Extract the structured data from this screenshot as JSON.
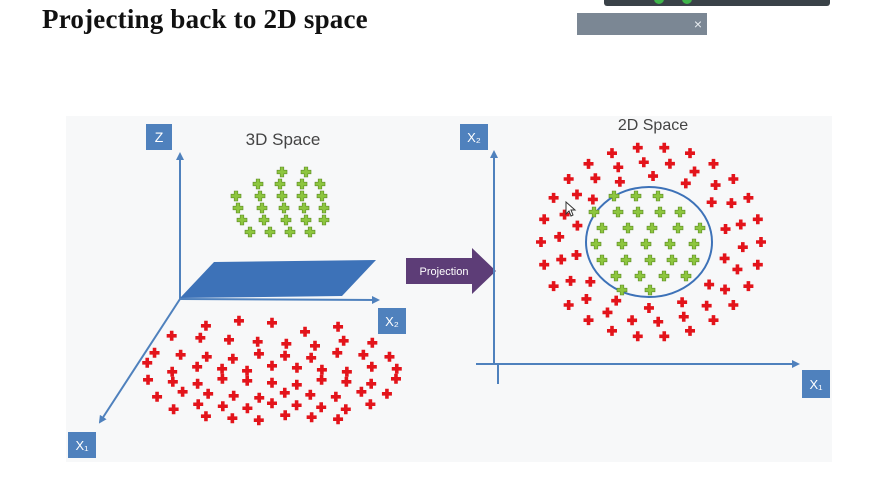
{
  "page": {
    "title": "Projecting back to 2D space"
  },
  "overlay": {
    "close_icon": "×",
    "icon_name": "close-icon"
  },
  "diagram": {
    "left_panel": {
      "title": "3D Space",
      "axis_z": "Z",
      "axis_x2": "X₂",
      "axis_x1": "X₁"
    },
    "arrow_label": "Projection",
    "right_panel": {
      "title": "2D Space",
      "axis_x2": "X₂",
      "axis_x1": "X₁"
    },
    "colors": {
      "axis": "#4f81bd",
      "label_box": "#4f81bd",
      "red_marker": "#e3141b",
      "green_marker": "#8dc63f",
      "plane": "#3d72b8",
      "projection_arrow": "#5d3d77"
    }
  }
}
